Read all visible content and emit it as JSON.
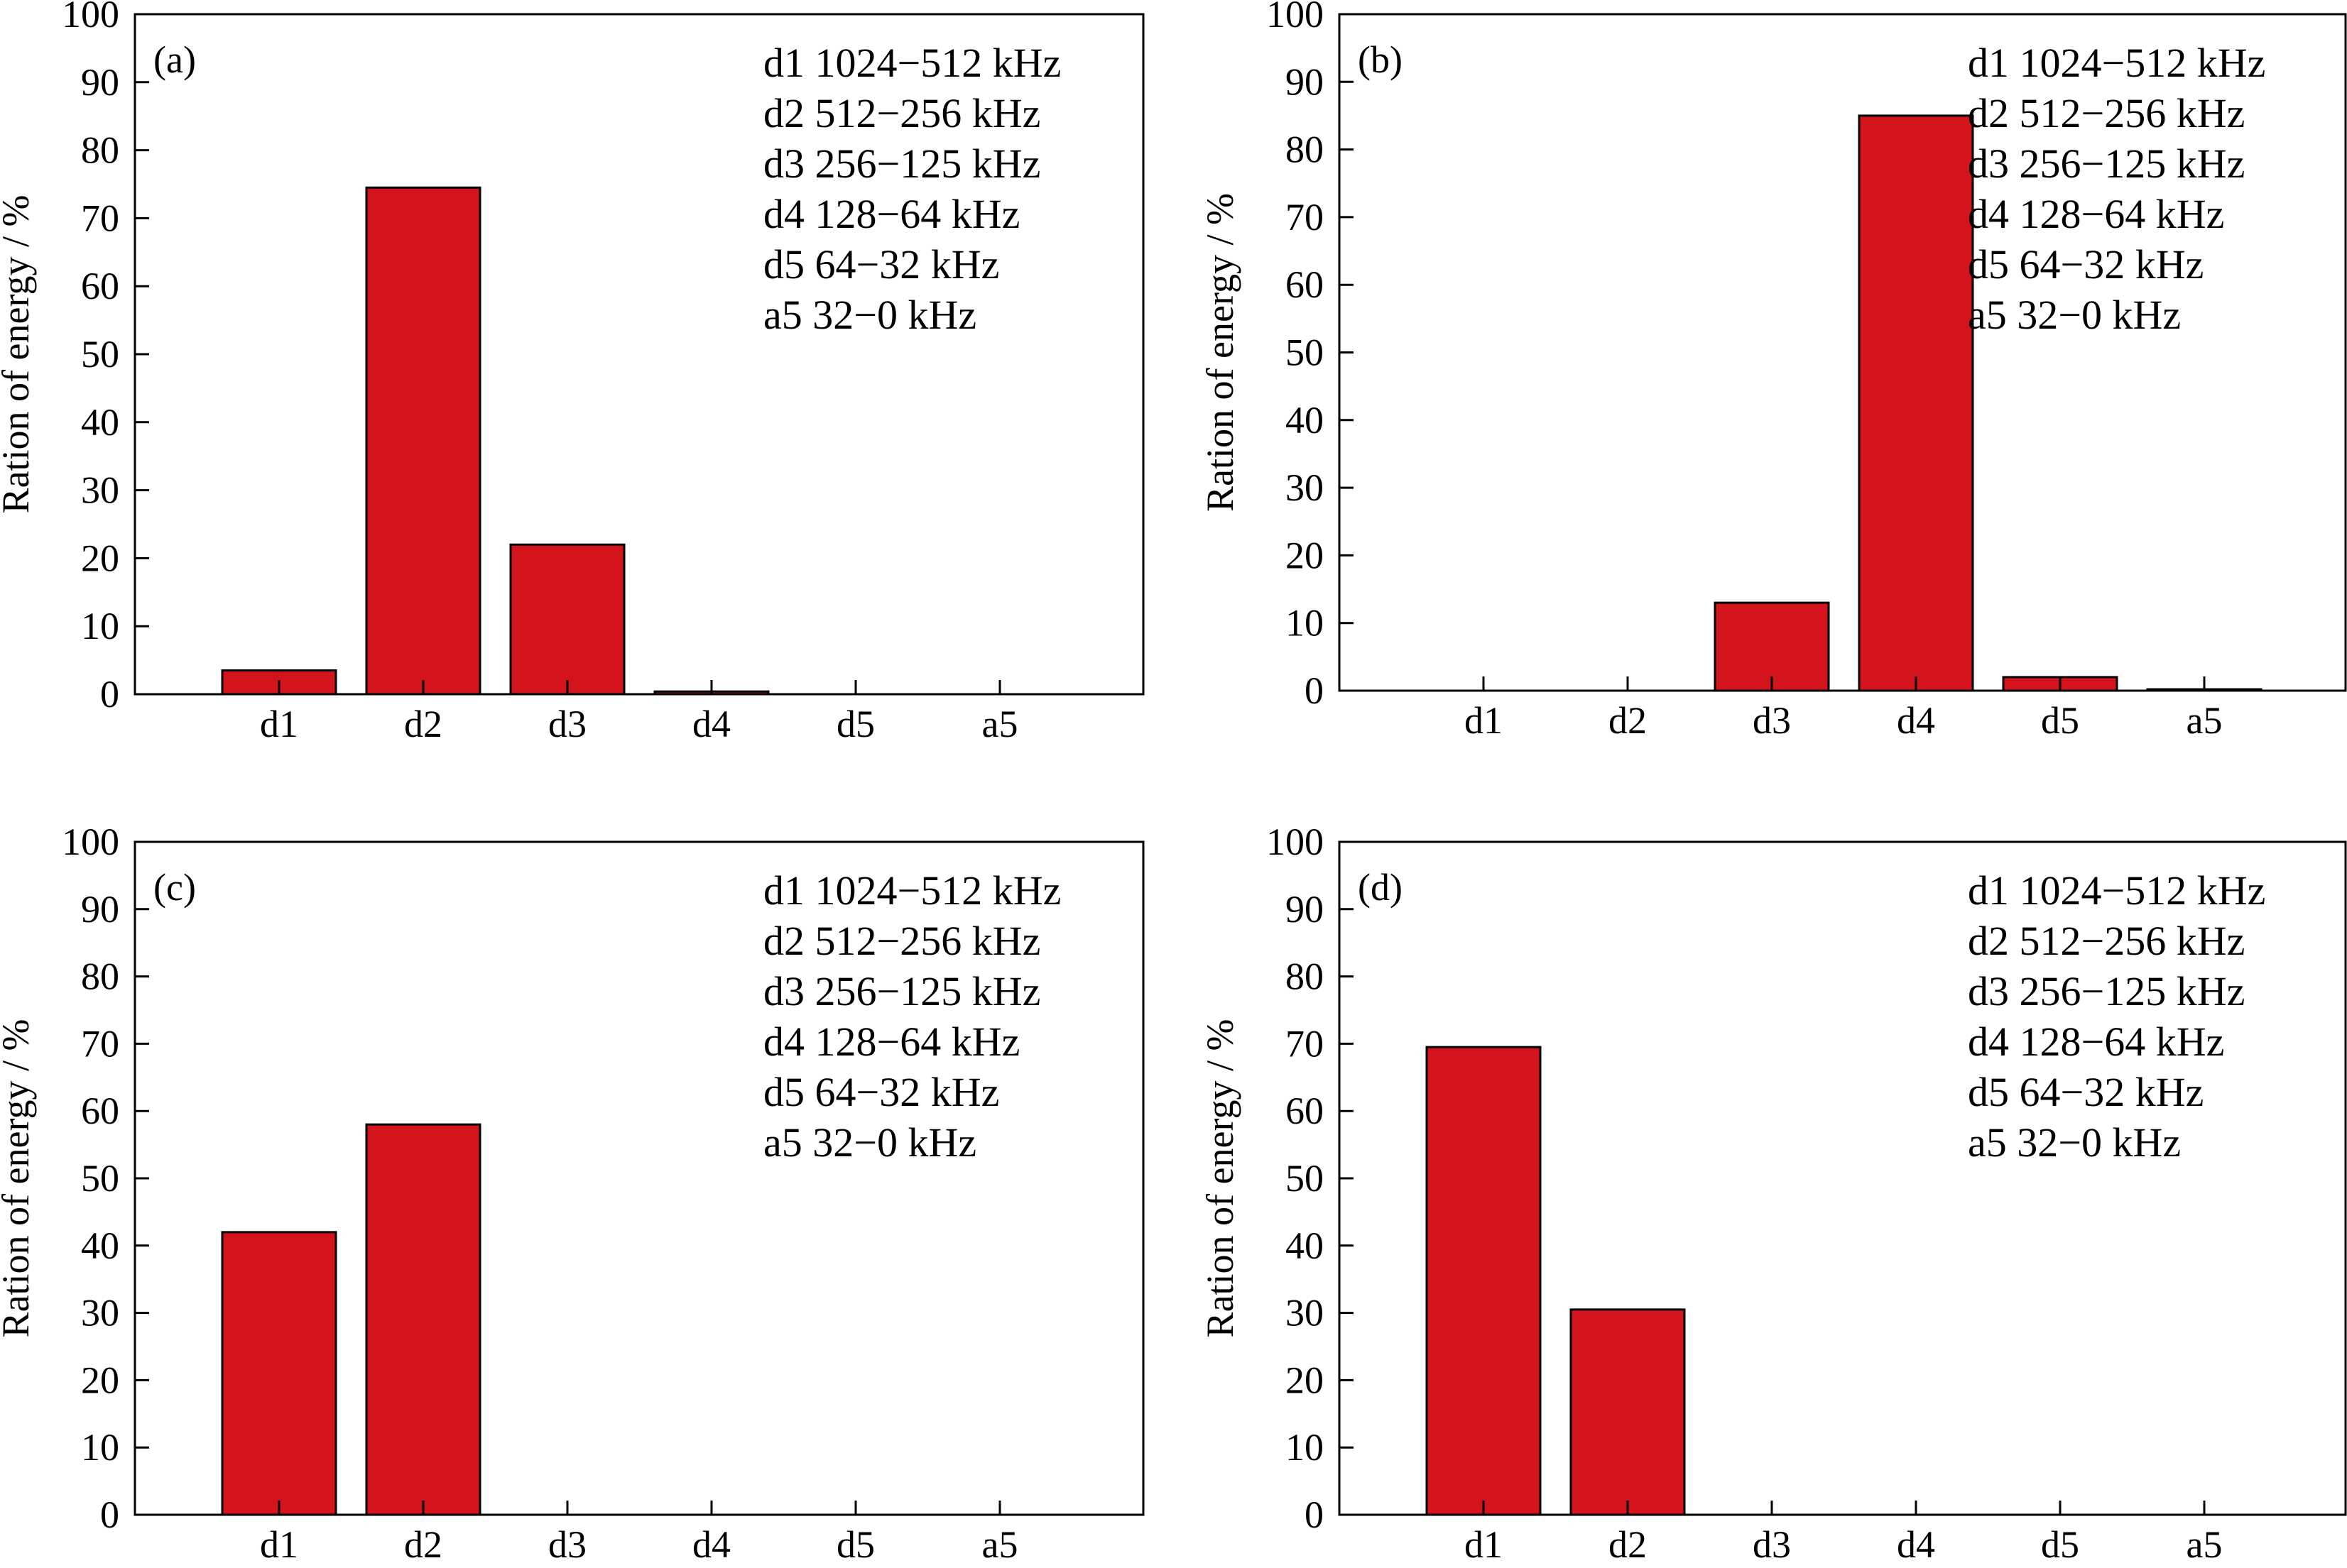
{
  "colors": {
    "bar": "#d4141c",
    "axis": "#000000",
    "background": "#ffffff"
  },
  "chart_data": [
    {
      "type": "bar",
      "panel": "(a)",
      "categories": [
        "d1",
        "d2",
        "d3",
        "d4",
        "d5",
        "a5"
      ],
      "values": [
        3.5,
        74.5,
        22.0,
        0.4,
        0.0,
        0.0
      ],
      "ylabel": "Ration of energy / %",
      "ylim": [
        0,
        100
      ],
      "yticks": [
        "0",
        "10",
        "20",
        "30",
        "40",
        "50",
        "60",
        "70",
        "80",
        "90",
        "100"
      ],
      "grid": false,
      "legend_position": "top-right",
      "legend": [
        "d1  1024−512 kHz",
        "d2  512−256 kHz",
        "d3  256−125 kHz",
        "d4  128−64 kHz",
        "d5  64−32 kHz",
        "a5  32−0 kHz"
      ]
    },
    {
      "type": "bar",
      "panel": "(b)",
      "categories": [
        "d1",
        "d2",
        "d3",
        "d4",
        "d5",
        "a5"
      ],
      "values": [
        0.0,
        0.0,
        13.0,
        85.0,
        2.0,
        0.2
      ],
      "ylabel": "Ration of energy / %",
      "ylim": [
        0,
        100
      ],
      "yticks": [
        "0",
        "10",
        "20",
        "30",
        "40",
        "50",
        "60",
        "70",
        "80",
        "90",
        "100"
      ],
      "grid": false,
      "legend_position": "top-right",
      "legend": [
        "d1  1024−512 kHz",
        "d2  512−256 kHz",
        "d3  256−125 kHz",
        "d4  128−64 kHz",
        "d5  64−32 kHz",
        "a5  32−0 kHz"
      ]
    },
    {
      "type": "bar",
      "panel": "(c)",
      "categories": [
        "d1",
        "d2",
        "d3",
        "d4",
        "d5",
        "a5"
      ],
      "values": [
        42.0,
        58.0,
        0.0,
        0.0,
        0.0,
        0.0
      ],
      "ylabel": "Ration of energy / %",
      "ylim": [
        0,
        100
      ],
      "yticks": [
        "0",
        "10",
        "20",
        "30",
        "40",
        "50",
        "60",
        "70",
        "80",
        "90",
        "100"
      ],
      "grid": false,
      "legend_position": "top-right",
      "legend": [
        "d1  1024−512 kHz",
        "d2  512−256 kHz",
        "d3  256−125 kHz",
        "d4  128−64 kHz",
        "d5  64−32 kHz",
        "a5  32−0 kHz"
      ]
    },
    {
      "type": "bar",
      "panel": "(d)",
      "categories": [
        "d1",
        "d2",
        "d3",
        "d4",
        "d5",
        "a5"
      ],
      "values": [
        69.5,
        30.5,
        0.0,
        0.0,
        0.0,
        0.0
      ],
      "ylabel": "Ration of energy / %",
      "ylim": [
        0,
        100
      ],
      "yticks": [
        "0",
        "10",
        "20",
        "30",
        "40",
        "50",
        "60",
        "70",
        "80",
        "90",
        "100"
      ],
      "grid": false,
      "legend_position": "top-right",
      "legend": [
        "d1  1024−512 kHz",
        "d2  512−256 kHz",
        "d3  256−125 kHz",
        "d4  128−64 kHz",
        "d5  64−32 kHz",
        "a5  32−0 kHz"
      ]
    }
  ]
}
